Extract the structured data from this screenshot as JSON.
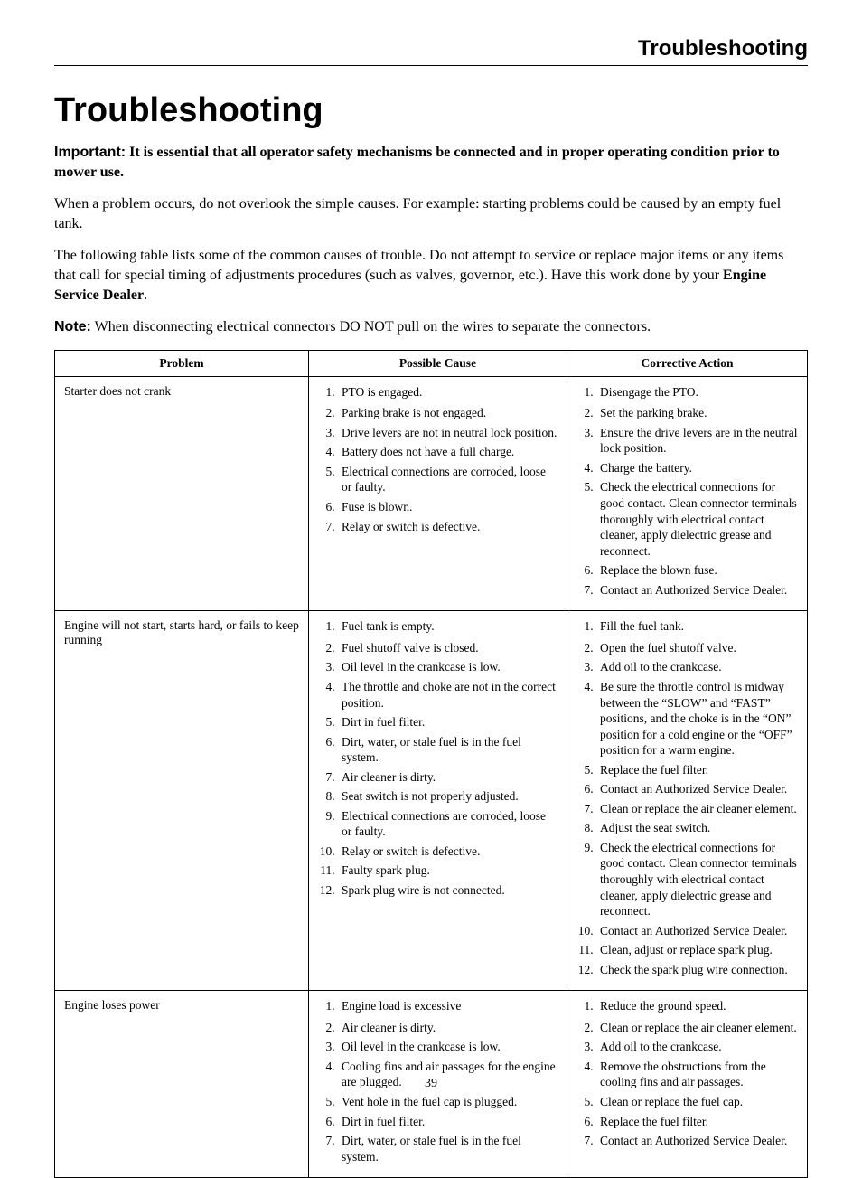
{
  "running_head": "Troubleshooting",
  "title": "Troubleshooting",
  "important_label": "Important:",
  "important_text": "It is essential that all operator safety mechanisms be connected and in proper operating condition prior to mower use.",
  "para1": "When a problem occurs, do not overlook the simple causes. For example: starting problems could be caused by an empty fuel tank.",
  "para2a": "The following table lists some of the common causes of trouble. Do not attempt to service or replace major items or any items that call for special timing of adjustments procedures (such as valves, governor, etc.). Have this work done by your ",
  "para2b_bold": "Engine Service Dealer",
  "para2c": ".",
  "note_label": "Note:",
  "note_text": "When disconnecting electrical connectors DO NOT pull on the wires to separate the connectors.",
  "headers": {
    "problem": "Problem",
    "cause": "Possible Cause",
    "action": "Corrective Action"
  },
  "rows": [
    {
      "problem": "Starter does not crank",
      "causes": [
        "PTO is engaged.",
        "Parking brake is not engaged.",
        "Drive levers are not in neutral lock position.",
        "Battery does not have a full charge.",
        "Electrical connections are corroded, loose or faulty.",
        "Fuse is blown.",
        "Relay or switch is defective."
      ],
      "actions": [
        "Disengage the PTO.",
        "Set the parking brake.",
        "Ensure the drive levers are in the neutral lock position.",
        "Charge the battery.",
        "Check the electrical connections for good contact. Clean connector terminals thoroughly with electrical contact cleaner, apply dielectric grease and reconnect.",
        "Replace the blown fuse.",
        "Contact an Authorized Service Dealer."
      ]
    },
    {
      "problem": "Engine will not start, starts hard, or fails to keep running",
      "causes": [
        "Fuel tank is empty.",
        "Fuel shutoff valve is closed.",
        "Oil level in the crankcase is low.",
        "The throttle and choke are not in the correct position.",
        "Dirt in fuel filter.",
        "Dirt, water, or stale fuel is in the fuel system.",
        "Air cleaner is dirty.",
        "Seat switch is not properly adjusted.",
        "Electrical connections are corroded, loose or faulty.",
        "Relay or switch is defective.",
        "Faulty spark plug.",
        "Spark plug wire is not connected."
      ],
      "actions": [
        "Fill the fuel tank.",
        "Open the fuel shutoff valve.",
        "Add oil to the crankcase.",
        "Be sure the throttle control is midway between the “SLOW” and “FAST” positions, and the choke is in the “ON” position for a cold engine or the “OFF” position for a warm engine.",
        "Replace the fuel filter.",
        "Contact an Authorized Service Dealer.",
        "Clean or replace the air cleaner element.",
        "Adjust the seat switch.",
        "Check the electrical connections for good contact. Clean connector terminals thoroughly with electrical contact cleaner, apply dielectric grease and reconnect.",
        "Contact an Authorized Service Dealer.",
        "Clean, adjust or replace spark plug.",
        "Check the spark plug wire connection."
      ]
    },
    {
      "problem": "Engine loses power",
      "causes": [
        "Engine load is excessive",
        "Air cleaner is dirty.",
        "Oil level in the crankcase is low.",
        "Cooling fins and air passages for the engine are plugged.",
        "Vent hole in the fuel cap is plugged.",
        "Dirt in fuel filter.",
        "Dirt, water, or stale fuel is in the fuel system."
      ],
      "actions": [
        "Reduce the ground speed.",
        "Clean or replace the air cleaner element.",
        "Add oil to the crankcase.",
        "Remove the obstructions from the cooling fins and air passages.",
        "Clean or replace the fuel cap.",
        "Replace the fuel filter.",
        "Contact an Authorized Service Dealer."
      ]
    }
  ],
  "page_number": "39",
  "style": {
    "background_color": "#ffffff",
    "text_color": "#000000",
    "border_color": "#000000",
    "body_font": "Times New Roman",
    "heading_font": "Arial",
    "title_fontsize": 38,
    "running_head_fontsize": 24,
    "body_fontsize": 16,
    "table_fontsize": 13.5
  }
}
